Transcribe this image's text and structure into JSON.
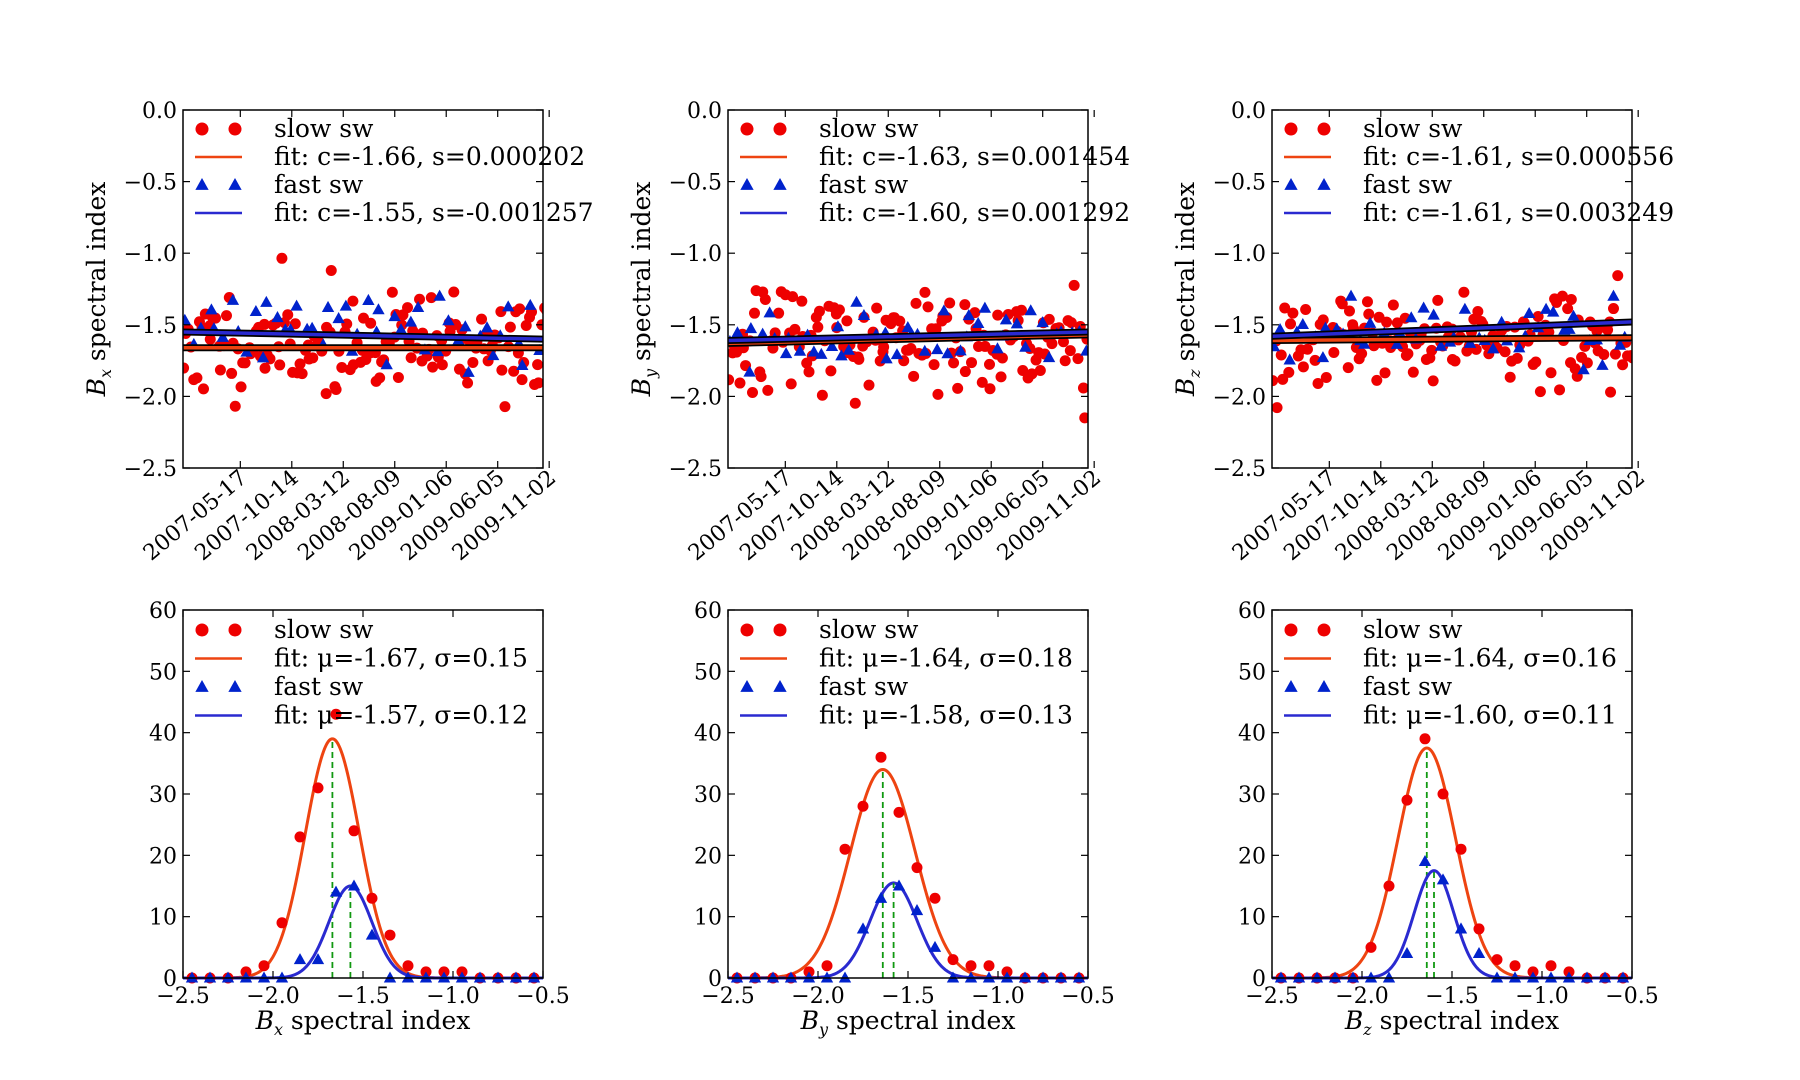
{
  "colors": {
    "slow_marker": "#ee0000",
    "slow_fit": "#ee4411",
    "fast_marker": "#0022cc",
    "fast_fit": "#2a2ad0",
    "mean_line": "#119911",
    "background": "#ffffff"
  },
  "chart_data": [
    {
      "type": "scatter",
      "panel": "top-left",
      "ylabel_sym": "B",
      "ylabel_sub": "x",
      "ylabel_rest": "spectral index",
      "ylim": [
        -2.5,
        0.0
      ],
      "yticks": [
        "0.0",
        "−0.5",
        "−1.0",
        "−1.5",
        "−2.0",
        "−2.5"
      ],
      "xticks": [
        "2007-05-17",
        "2007-10-14",
        "2008-03-12",
        "2008-08-09",
        "2009-01-06",
        "2009-06-05",
        "2009-11-02"
      ],
      "xlim": [
        "2006-12-01",
        "2009-10-15"
      ],
      "legend": [
        "slow sw",
        "fit: c=-1.66, s=0.000202",
        "fast sw",
        "fit: c=-1.55, s=-0.001257"
      ],
      "fits": {
        "slow": [
          -1.66,
          -1.66
        ],
        "fast": [
          -1.55,
          -1.6
        ]
      },
      "slow_seed": 11,
      "fast_seed": 21,
      "slow_mean": -1.64,
      "slow_sd": 0.17,
      "fast_mean": -1.55,
      "fast_sd": 0.14
    },
    {
      "type": "scatter",
      "panel": "top-middle",
      "ylabel_sym": "B",
      "ylabel_sub": "y",
      "ylabel_rest": "spectral index",
      "ylim": [
        -2.5,
        0.0
      ],
      "yticks": [
        "0.0",
        "−0.5",
        "−1.0",
        "−1.5",
        "−2.0",
        "−2.5"
      ],
      "xticks": [
        "2007-05-17",
        "2007-10-14",
        "2008-03-12",
        "2008-08-09",
        "2009-01-06",
        "2009-06-05",
        "2009-11-02"
      ],
      "xlim": [
        "2006-12-01",
        "2009-10-15"
      ],
      "legend": [
        "slow sw",
        "fit: c=-1.63, s=0.001454",
        "fast sw",
        "fit: c=-1.60, s=0.001292"
      ],
      "fits": {
        "slow": [
          -1.63,
          -1.57
        ],
        "fast": [
          -1.61,
          -1.55
        ]
      },
      "slow_seed": 33,
      "fast_seed": 43,
      "slow_mean": -1.62,
      "slow_sd": 0.19,
      "fast_mean": -1.6,
      "fast_sd": 0.12
    },
    {
      "type": "scatter",
      "panel": "top-right",
      "ylabel_sym": "B",
      "ylabel_sub": "z",
      "ylabel_rest": "spectral index",
      "ylim": [
        -2.5,
        0.0
      ],
      "yticks": [
        "0.0",
        "−0.5",
        "−1.0",
        "−1.5",
        "−2.0",
        "−2.5"
      ],
      "xticks": [
        "2007-05-17",
        "2007-10-14",
        "2008-03-12",
        "2008-08-09",
        "2009-01-06",
        "2009-06-05",
        "2009-11-02"
      ],
      "xlim": [
        "2006-12-01",
        "2009-10-15"
      ],
      "legend": [
        "slow sw",
        "fit: c=-1.61, s=0.000556",
        "fast sw",
        "fit: c=-1.61, s=0.003249"
      ],
      "fits": {
        "slow": [
          -1.61,
          -1.59
        ],
        "fast": [
          -1.58,
          -1.48
        ]
      },
      "slow_seed": 55,
      "fast_seed": 65,
      "slow_mean": -1.6,
      "slow_sd": 0.18,
      "fast_mean": -1.55,
      "fast_sd": 0.12
    },
    {
      "type": "scatter",
      "panel": "bottom-left",
      "xlabel_sym": "B",
      "xlabel_sub": "x",
      "xlabel_rest": "spectral index",
      "xlim": [
        -2.5,
        -0.5
      ],
      "ylim": [
        0,
        60
      ],
      "xticks": [
        -2.5,
        -2.0,
        -1.5,
        -1.0,
        -0.5
      ],
      "xtick_labels": [
        "−2.5",
        "−2.0",
        "−1.5",
        "−1.0",
        "−0.5"
      ],
      "yticks": [
        0,
        10,
        20,
        30,
        40,
        50,
        60
      ],
      "legend": [
        "slow sw",
        "fit: μ=-1.67, σ=0.15",
        "fast sw",
        "fit: μ=-1.57, σ=0.12"
      ],
      "slow_points": {
        "x": [
          -2.45,
          -2.35,
          -2.25,
          -2.15,
          -2.05,
          -1.95,
          -1.85,
          -1.75,
          -1.65,
          -1.55,
          -1.45,
          -1.35,
          -1.25,
          -1.15,
          -1.05,
          -0.95,
          -0.85,
          -0.75,
          -0.65,
          -0.55
        ],
        "y": [
          0,
          0,
          0,
          1,
          2,
          9,
          23,
          31,
          43,
          24,
          13,
          7,
          2,
          1,
          1,
          1,
          0,
          0,
          0,
          0
        ]
      },
      "fast_points": {
        "x": [
          -2.45,
          -2.35,
          -2.25,
          -2.15,
          -2.05,
          -1.95,
          -1.85,
          -1.75,
          -1.65,
          -1.55,
          -1.45,
          -1.35,
          -1.25,
          -1.15,
          -1.05,
          -0.95,
          -0.85,
          -0.75,
          -0.65,
          -0.55
        ],
        "y": [
          0,
          0,
          0,
          0,
          0,
          0,
          3,
          3,
          14,
          15,
          7,
          0,
          0,
          0,
          0,
          0,
          0,
          0,
          0,
          0
        ]
      },
      "slow_fit": {
        "mu": -1.67,
        "sigma": 0.15,
        "amp": 39
      },
      "fast_fit": {
        "mu": -1.57,
        "sigma": 0.12,
        "amp": 15
      }
    },
    {
      "type": "scatter",
      "panel": "bottom-middle",
      "xlabel_sym": "B",
      "xlabel_sub": "y",
      "xlabel_rest": "spectral index",
      "xlim": [
        -2.5,
        -0.5
      ],
      "ylim": [
        0,
        60
      ],
      "xticks": [
        -2.5,
        -2.0,
        -1.5,
        -1.0,
        -0.5
      ],
      "xtick_labels": [
        "−2.5",
        "−2.0",
        "−1.5",
        "−1.0",
        "−0.5"
      ],
      "yticks": [
        0,
        10,
        20,
        30,
        40,
        50,
        60
      ],
      "legend": [
        "slow sw",
        "fit: μ=-1.64, σ=0.18",
        "fast sw",
        "fit: μ=-1.58, σ=0.13"
      ],
      "slow_points": {
        "x": [
          -2.45,
          -2.35,
          -2.25,
          -2.15,
          -2.05,
          -1.95,
          -1.85,
          -1.75,
          -1.65,
          -1.55,
          -1.45,
          -1.35,
          -1.25,
          -1.15,
          -1.05,
          -0.95,
          -0.85,
          -0.75,
          -0.65,
          -0.55
        ],
        "y": [
          0,
          0,
          0,
          0,
          1,
          2,
          21,
          28,
          36,
          27,
          18,
          13,
          3,
          2,
          2,
          1,
          0,
          0,
          0,
          0
        ]
      },
      "fast_points": {
        "x": [
          -2.45,
          -2.35,
          -2.25,
          -2.15,
          -2.05,
          -1.95,
          -1.85,
          -1.75,
          -1.65,
          -1.55,
          -1.45,
          -1.35,
          -1.25,
          -1.15,
          -1.05,
          -0.95,
          -0.85,
          -0.75,
          -0.65,
          -0.55
        ],
        "y": [
          0,
          0,
          0,
          0,
          0,
          0,
          0,
          8,
          13,
          15,
          11,
          5,
          0,
          0,
          0,
          0,
          0,
          0,
          0,
          0
        ]
      },
      "slow_fit": {
        "mu": -1.64,
        "sigma": 0.18,
        "amp": 34
      },
      "fast_fit": {
        "mu": -1.58,
        "sigma": 0.13,
        "amp": 15.5
      }
    },
    {
      "type": "scatter",
      "panel": "bottom-right",
      "xlabel_sym": "B",
      "xlabel_sub": "z",
      "xlabel_rest": "spectral index",
      "xlim": [
        -2.5,
        -0.5
      ],
      "ylim": [
        0,
        60
      ],
      "xticks": [
        -2.5,
        -2.0,
        -1.5,
        -1.0,
        -0.5
      ],
      "xtick_labels": [
        "−2.5",
        "−2.0",
        "−1.5",
        "−1.0",
        "−0.5"
      ],
      "yticks": [
        0,
        10,
        20,
        30,
        40,
        50,
        60
      ],
      "legend": [
        "slow sw",
        "fit: μ=-1.64, σ=0.16",
        "fast sw",
        "fit: μ=-1.60, σ=0.11"
      ],
      "slow_points": {
        "x": [
          -2.45,
          -2.35,
          -2.25,
          -2.15,
          -2.05,
          -1.95,
          -1.85,
          -1.75,
          -1.65,
          -1.55,
          -1.45,
          -1.35,
          -1.25,
          -1.15,
          -1.05,
          -0.95,
          -0.85,
          -0.75,
          -0.65,
          -0.55
        ],
        "y": [
          0,
          0,
          0,
          0,
          0,
          5,
          15,
          29,
          39,
          30,
          21,
          8,
          3,
          2,
          1,
          2,
          1,
          0,
          0,
          0
        ]
      },
      "fast_points": {
        "x": [
          -2.45,
          -2.35,
          -2.25,
          -2.15,
          -2.05,
          -1.95,
          -1.85,
          -1.75,
          -1.65,
          -1.55,
          -1.45,
          -1.35,
          -1.25,
          -1.15,
          -1.05,
          -0.95,
          -0.85,
          -0.75,
          -0.65,
          -0.55
        ],
        "y": [
          0,
          0,
          0,
          0,
          0,
          0,
          0,
          4,
          19,
          16,
          8,
          4,
          0,
          0,
          0,
          0,
          0,
          0,
          0,
          0
        ]
      },
      "slow_fit": {
        "mu": -1.64,
        "sigma": 0.16,
        "amp": 37.5
      },
      "fast_fit": {
        "mu": -1.6,
        "sigma": 0.11,
        "amp": 17.5
      }
    }
  ]
}
